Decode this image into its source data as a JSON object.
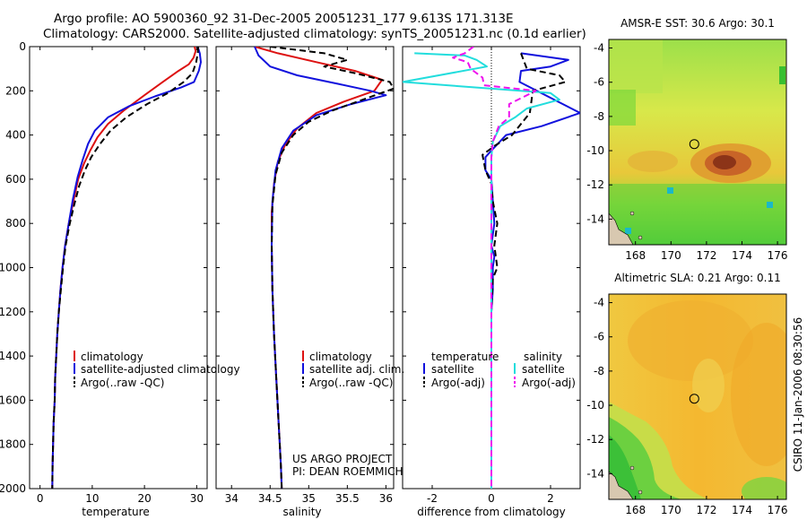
{
  "title": {
    "line1": "Argo profile: AO 5900360_92 31-Dec-2005 20051231_177 9.613S 171.313E",
    "line2": "Climatology: CARS2000. Satellite-adjusted climatology: synTS_20051231.nc (0.1d earlier)"
  },
  "credit": {
    "line1": "US ARGO PROJECT",
    "line2": "PI: DEAN ROEMMICH"
  },
  "timestamp": "CSIRO 11-Jan-2006 08:30:56",
  "colors": {
    "climatology": "#dd1111",
    "satellite": "#1111dd",
    "argo": "#000000",
    "cyan": "#22dddd",
    "magenta": "#ee11ee"
  },
  "chart_data": [
    {
      "id": "temperature",
      "type": "line",
      "xlabel": "temperature",
      "ylabel": "",
      "ylim": [
        0,
        2000
      ],
      "xlim": [
        -2,
        32
      ],
      "y_reversed": true,
      "xticks": [
        0,
        10,
        20,
        30
      ],
      "yticks": [
        0,
        200,
        400,
        600,
        800,
        1000,
        1200,
        1400,
        1600,
        1800,
        2000
      ],
      "legend": [
        "climatology",
        "satellite-adjusted climatology",
        "Argo(..raw -QC)"
      ],
      "series": [
        {
          "name": "climatology",
          "color": "#dd1111",
          "style": "solid",
          "points": [
            [
              29.6,
              0
            ],
            [
              29.8,
              20
            ],
            [
              29.4,
              50
            ],
            [
              28.5,
              80
            ],
            [
              26.5,
              110
            ],
            [
              23.5,
              160
            ],
            [
              20,
              220
            ],
            [
              16,
              290
            ],
            [
              13,
              350
            ],
            [
              11,
              410
            ],
            [
              9.6,
              470
            ],
            [
              8.4,
              530
            ],
            [
              7.3,
              600
            ],
            [
              6.4,
              700
            ],
            [
              5.5,
              800
            ],
            [
              4.8,
              900
            ],
            [
              4.3,
              1000
            ],
            [
              3.9,
              1100
            ],
            [
              3.6,
              1200
            ],
            [
              3.3,
              1300
            ],
            [
              3.1,
              1400
            ],
            [
              2.9,
              1500
            ],
            [
              2.8,
              1600
            ],
            [
              2.6,
              1700
            ],
            [
              2.5,
              1800
            ],
            [
              2.4,
              1900
            ],
            [
              2.35,
              2000
            ]
          ]
        },
        {
          "name": "satellite-adjusted climatology",
          "color": "#1111dd",
          "style": "solid",
          "points": [
            [
              30.2,
              0
            ],
            [
              30.6,
              30
            ],
            [
              30.8,
              70
            ],
            [
              30.4,
              110
            ],
            [
              29.5,
              160
            ],
            [
              27,
              185
            ],
            [
              22,
              225
            ],
            [
              17,
              270
            ],
            [
              13,
              320
            ],
            [
              10.5,
              380
            ],
            [
              9.2,
              440
            ],
            [
              8.2,
              510
            ],
            [
              7.2,
              590
            ],
            [
              6.3,
              690
            ],
            [
              5.5,
              800
            ],
            [
              4.8,
              900
            ],
            [
              4.3,
              1000
            ],
            [
              3.9,
              1100
            ],
            [
              3.6,
              1200
            ],
            [
              3.3,
              1300
            ],
            [
              3.1,
              1400
            ],
            [
              2.9,
              1500
            ],
            [
              2.8,
              1600
            ],
            [
              2.6,
              1700
            ],
            [
              2.5,
              1800
            ],
            [
              2.4,
              1900
            ],
            [
              2.35,
              2000
            ]
          ]
        },
        {
          "name": "Argo(..raw -QC)",
          "color": "#000000",
          "style": "dashed",
          "points": [
            [
              30.3,
              0
            ],
            [
              30.2,
              30
            ],
            [
              29.9,
              70
            ],
            [
              29.2,
              120
            ],
            [
              27.5,
              160
            ],
            [
              24.5,
              210
            ],
            [
              20.5,
              260
            ],
            [
              16.5,
              320
            ],
            [
              13.5,
              380
            ],
            [
              11.5,
              440
            ],
            [
              9.8,
              500
            ],
            [
              8.6,
              560
            ],
            [
              7.5,
              630
            ],
            [
              6.5,
              720
            ],
            [
              5.6,
              810
            ],
            [
              4.9,
              900
            ],
            [
              4.4,
              1000
            ],
            [
              4,
              1100
            ],
            [
              3.6,
              1200
            ],
            [
              3.3,
              1300
            ],
            [
              3.1,
              1400
            ],
            [
              2.9,
              1500
            ],
            [
              2.8,
              1600
            ],
            [
              2.6,
              1700
            ],
            [
              2.5,
              1800
            ],
            [
              2.4,
              1900
            ],
            [
              2.35,
              2000
            ]
          ]
        }
      ]
    },
    {
      "id": "salinity",
      "type": "line",
      "xlabel": "salinity",
      "ylabel": "",
      "ylim": [
        0,
        2000
      ],
      "xlim": [
        33.8,
        36.1
      ],
      "y_reversed": true,
      "xticks": [
        34,
        34.5,
        35,
        35.5,
        36
      ],
      "yticks": [
        0,
        200,
        400,
        600,
        800,
        1000,
        1200,
        1400,
        1600,
        1800,
        2000
      ],
      "legend": [
        "climatology",
        "satellite adj. clim.",
        "Argo(..raw -QC)"
      ],
      "series": [
        {
          "name": "climatology",
          "color": "#dd1111",
          "style": "solid",
          "points": [
            [
              34.3,
              0
            ],
            [
              34.6,
              30
            ],
            [
              35.1,
              70
            ],
            [
              35.6,
              110
            ],
            [
              35.95,
              150
            ],
            [
              35.85,
              200
            ],
            [
              35.45,
              250
            ],
            [
              35.1,
              300
            ],
            [
              34.85,
              370
            ],
            [
              34.7,
              440
            ],
            [
              34.6,
              520
            ],
            [
              34.55,
              620
            ],
            [
              34.52,
              750
            ],
            [
              34.52,
              900
            ],
            [
              34.53,
              1100
            ],
            [
              34.55,
              1300
            ],
            [
              34.58,
              1500
            ],
            [
              34.61,
              1700
            ],
            [
              34.64,
              1900
            ],
            [
              34.65,
              2000
            ]
          ]
        },
        {
          "name": "satellite adj. clim.",
          "color": "#1111dd",
          "style": "solid",
          "points": [
            [
              34.3,
              0
            ],
            [
              34.35,
              40
            ],
            [
              34.5,
              90
            ],
            [
              34.85,
              130
            ],
            [
              35.4,
              170
            ],
            [
              35.8,
              200
            ],
            [
              36,
              220
            ],
            [
              35.55,
              260
            ],
            [
              35.1,
              310
            ],
            [
              34.8,
              380
            ],
            [
              34.65,
              460
            ],
            [
              34.57,
              560
            ],
            [
              34.53,
              700
            ],
            [
              34.52,
              900
            ],
            [
              34.53,
              1100
            ],
            [
              34.55,
              1300
            ],
            [
              34.58,
              1500
            ],
            [
              34.61,
              1700
            ],
            [
              34.64,
              1900
            ],
            [
              34.65,
              2000
            ]
          ]
        },
        {
          "name": "Argo(..raw -QC)",
          "color": "#000000",
          "style": "dashed",
          "points": [
            [
              34.5,
              0
            ],
            [
              35.2,
              30
            ],
            [
              35.5,
              60
            ],
            [
              35.2,
              90
            ],
            [
              35.6,
              120
            ],
            [
              36.05,
              160
            ],
            [
              36.1,
              190
            ],
            [
              35.7,
              240
            ],
            [
              35.3,
              290
            ],
            [
              35,
              340
            ],
            [
              34.8,
              400
            ],
            [
              34.65,
              480
            ],
            [
              34.57,
              580
            ],
            [
              34.53,
              720
            ],
            [
              34.52,
              900
            ],
            [
              34.53,
              1100
            ],
            [
              34.55,
              1300
            ],
            [
              34.58,
              1500
            ],
            [
              34.61,
              1700
            ],
            [
              34.64,
              1900
            ],
            [
              34.65,
              2000
            ]
          ]
        }
      ]
    },
    {
      "id": "difference",
      "type": "line",
      "xlabel": "difference from climatology",
      "ylabel": "",
      "ylim": [
        0,
        2000
      ],
      "xlim": [
        -3,
        3
      ],
      "y_reversed": true,
      "xticks": [
        -2,
        0,
        2
      ],
      "yticks": [
        0,
        200,
        400,
        600,
        800,
        1000,
        1200,
        1400,
        1600,
        1800,
        2000
      ],
      "legend_groups": [
        {
          "title": "temperature",
          "items": [
            "satellite",
            "Argo(-adj)"
          ]
        },
        {
          "title": "salinity",
          "items": [
            "satellite",
            "Argo(-adj)"
          ]
        }
      ],
      "series": [
        {
          "name": "temperature satellite",
          "color": "#1111dd",
          "style": "solid",
          "points": [
            [
              1,
              30
            ],
            [
              2.6,
              60
            ],
            [
              2,
              90
            ],
            [
              1,
              110
            ],
            [
              0.95,
              160
            ],
            [
              3,
              300
            ],
            [
              1.7,
              360
            ],
            [
              0.5,
              400
            ],
            [
              0,
              470
            ],
            [
              -0.2,
              500
            ],
            [
              -0.2,
              560
            ],
            [
              0,
              600
            ],
            [
              0.05,
              700
            ],
            [
              0.1,
              800
            ],
            [
              0,
              900
            ],
            [
              0.1,
              950
            ],
            [
              0.05,
              1000
            ],
            [
              0.05,
              1100
            ],
            [
              0,
              1200
            ],
            [
              0,
              1300
            ],
            [
              0,
              1400
            ],
            [
              0,
              1600
            ],
            [
              0,
              1800
            ],
            [
              0,
              2000
            ]
          ]
        },
        {
          "name": "temperature Argo(-adj)",
          "color": "#000000",
          "style": "dashed",
          "points": [
            [
              1,
              30
            ],
            [
              1.2,
              100
            ],
            [
              2.3,
              130
            ],
            [
              2.5,
              160
            ],
            [
              1.4,
              200
            ],
            [
              1.3,
              300
            ],
            [
              0.7,
              400
            ],
            [
              0.1,
              450
            ],
            [
              -0.3,
              490
            ],
            [
              -0.2,
              560
            ],
            [
              0,
              620
            ],
            [
              0.05,
              700
            ],
            [
              0.2,
              800
            ],
            [
              0.1,
              900
            ],
            [
              0.2,
              1000
            ],
            [
              0.05,
              1050
            ],
            [
              0,
              1200
            ],
            [
              0,
              1400
            ],
            [
              0,
              1600
            ],
            [
              0,
              1800
            ],
            [
              0,
              2000
            ]
          ]
        },
        {
          "name": "salinity satellite",
          "color": "#22dddd",
          "style": "solid",
          "points": [
            [
              -2.6,
              30
            ],
            [
              -0.9,
              40
            ],
            [
              -0.5,
              60
            ],
            [
              -0.15,
              90
            ],
            [
              -3,
              160
            ],
            [
              2,
              210
            ],
            [
              2.3,
              240
            ],
            [
              1.2,
              280
            ],
            [
              0.8,
              320
            ],
            [
              0.3,
              360
            ],
            [
              0.05,
              430
            ],
            [
              0,
              500
            ],
            [
              0,
              800
            ],
            [
              0,
              1000
            ],
            [
              0,
              1100
            ],
            [
              0,
              1400
            ],
            [
              0,
              1600
            ],
            [
              0,
              1800
            ],
            [
              0,
              2000
            ]
          ]
        },
        {
          "name": "salinity Argo(-adj)",
          "color": "#ee11ee",
          "style": "dashed",
          "points": [
            [
              -0.6,
              0
            ],
            [
              -0.9,
              30
            ],
            [
              -1.3,
              50
            ],
            [
              -0.8,
              70
            ],
            [
              -0.7,
              100
            ],
            [
              -0.3,
              140
            ],
            [
              -0.25,
              175
            ],
            [
              1.5,
              200
            ],
            [
              0.6,
              260
            ],
            [
              0.6,
              320
            ],
            [
              0.25,
              360
            ],
            [
              0.05,
              430
            ],
            [
              0,
              500
            ],
            [
              0,
              800
            ],
            [
              0,
              1000
            ],
            [
              0,
              1400
            ],
            [
              0,
              2000
            ]
          ]
        }
      ]
    },
    {
      "id": "sst-map",
      "type": "heatmap",
      "title": "AMSR-E SST: 30.6 Argo: 30.1",
      "xlim": [
        166.5,
        176.5
      ],
      "ylim": [
        -15.5,
        -3.5
      ],
      "xticks": [
        168,
        170,
        172,
        174,
        176
      ],
      "yticks": [
        -4,
        -6,
        -8,
        -10,
        -12,
        -14
      ],
      "marker": {
        "lon": 171.313,
        "lat": -9.613
      }
    },
    {
      "id": "sla-map",
      "type": "heatmap",
      "title": "Altimetric SLA: 0.21 Argo: 0.11",
      "xlim": [
        166.5,
        176.5
      ],
      "ylim": [
        -15.5,
        -3.5
      ],
      "xticks": [
        168,
        170,
        172,
        174,
        176
      ],
      "yticks": [
        -4,
        -6,
        -8,
        -10,
        -12,
        -14
      ],
      "marker": {
        "lon": 171.313,
        "lat": -9.613
      }
    }
  ]
}
